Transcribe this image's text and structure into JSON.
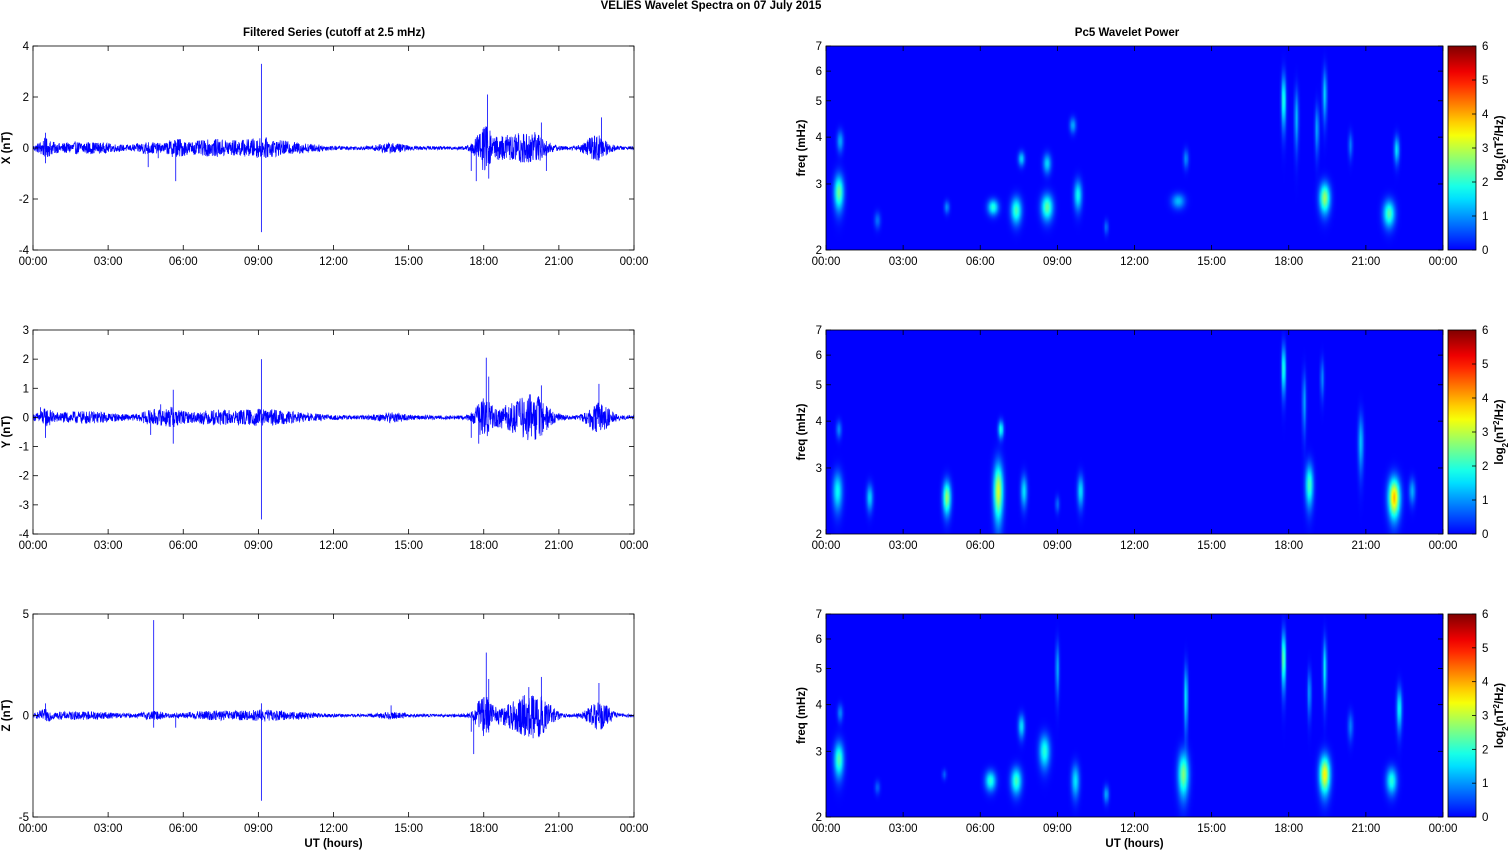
{
  "figure": {
    "suptitle": "VELIES Wavelet Spectra on 07 July      2015",
    "left_title": "Filtered Series (cutoff at 2.5 mHz)",
    "right_title": "Pc5 Wavelet Power"
  },
  "chart_data": [
    {
      "type": "line",
      "title": "Filtered Series (cutoff at 2.5 mHz)",
      "xlabel": "",
      "ylabel": "X (nT)",
      "xlim": [
        0,
        24
      ],
      "ylim": [
        -4,
        4
      ],
      "yticks": [
        "-4",
        "-2",
        "0",
        "2",
        "4"
      ],
      "xticks": [
        "00:00",
        "03:00",
        "06:00",
        "09:00",
        "12:00",
        "15:00",
        "18:00",
        "21:00",
        "00:00"
      ],
      "grid": false,
      "color": "#0000ff",
      "bursts": [
        {
          "t": 0.5,
          "a": 0.25,
          "w": 0.3
        },
        {
          "t": 2.0,
          "a": 0.18,
          "w": 1.5
        },
        {
          "t": 4.6,
          "a": 0.18,
          "w": 0.5
        },
        {
          "t": 5.7,
          "a": 0.25,
          "w": 0.4
        },
        {
          "t": 7.3,
          "a": 0.28,
          "w": 1.4
        },
        {
          "t": 9.1,
          "a": 0.22,
          "w": 0.8
        },
        {
          "t": 10.3,
          "a": 0.16,
          "w": 1.2
        },
        {
          "t": 14.3,
          "a": 0.15,
          "w": 0.6
        },
        {
          "t": 18.0,
          "a": 0.7,
          "w": 0.35
        },
        {
          "t": 19.0,
          "a": 0.45,
          "w": 0.9
        },
        {
          "t": 20.0,
          "a": 0.45,
          "w": 0.6
        },
        {
          "t": 22.5,
          "a": 0.45,
          "w": 0.5
        }
      ],
      "spikes": [
        {
          "t": 0.5,
          "v": 0.6
        },
        {
          "t": 0.5,
          "v": -0.6
        },
        {
          "t": 4.6,
          "v": -0.75
        },
        {
          "t": 5.0,
          "v": -0.4
        },
        {
          "t": 5.7,
          "v": -1.3
        },
        {
          "t": 9.12,
          "v": 3.3
        },
        {
          "t": 9.12,
          "v": -3.3
        },
        {
          "t": 17.5,
          "v": -0.9
        },
        {
          "t": 17.7,
          "v": -1.3
        },
        {
          "t": 18.15,
          "v": 2.1
        },
        {
          "t": 18.2,
          "v": -1.2
        },
        {
          "t": 20.5,
          "v": -0.9
        },
        {
          "t": 22.7,
          "v": 1.2
        },
        {
          "t": 20.3,
          "v": 1.0
        }
      ]
    },
    {
      "type": "line",
      "xlabel": "",
      "ylabel": "Y (nT)",
      "xlim": [
        0,
        24
      ],
      "ylim": [
        -4,
        3
      ],
      "yticks": [
        "-4",
        "-3",
        "-2",
        "-1",
        "0",
        "1",
        "2",
        "3"
      ],
      "xticks": [
        "00:00",
        "03:00",
        "06:00",
        "09:00",
        "12:00",
        "15:00",
        "18:00",
        "21:00",
        "00:00"
      ],
      "grid": false,
      "color": "#0000ff",
      "bursts": [
        {
          "t": 0.5,
          "a": 0.2,
          "w": 0.3
        },
        {
          "t": 2.0,
          "a": 0.15,
          "w": 1.5
        },
        {
          "t": 4.8,
          "a": 0.2,
          "w": 0.5
        },
        {
          "t": 5.6,
          "a": 0.25,
          "w": 0.4
        },
        {
          "t": 7.4,
          "a": 0.2,
          "w": 1.4
        },
        {
          "t": 9.1,
          "a": 0.15,
          "w": 0.8
        },
        {
          "t": 10.3,
          "a": 0.12,
          "w": 1.2
        },
        {
          "t": 14.3,
          "a": 0.12,
          "w": 0.6
        },
        {
          "t": 18.0,
          "a": 0.6,
          "w": 0.35
        },
        {
          "t": 19.3,
          "a": 0.45,
          "w": 0.9
        },
        {
          "t": 20.1,
          "a": 0.5,
          "w": 0.6
        },
        {
          "t": 22.6,
          "a": 0.45,
          "w": 0.5
        }
      ],
      "spikes": [
        {
          "t": 0.5,
          "v": -0.7
        },
        {
          "t": 0.3,
          "v": 0.35
        },
        {
          "t": 4.7,
          "v": -0.6
        },
        {
          "t": 5.1,
          "v": 0.45
        },
        {
          "t": 5.6,
          "v": 0.95
        },
        {
          "t": 5.6,
          "v": -0.9
        },
        {
          "t": 9.12,
          "v": 2.0
        },
        {
          "t": 9.12,
          "v": -3.5
        },
        {
          "t": 17.5,
          "v": -0.7
        },
        {
          "t": 17.8,
          "v": -0.9
        },
        {
          "t": 18.1,
          "v": 2.05
        },
        {
          "t": 18.2,
          "v": 1.4
        },
        {
          "t": 20.3,
          "v": 1.1
        },
        {
          "t": 22.6,
          "v": 1.15
        },
        {
          "t": 22.5,
          "v": -0.5
        }
      ]
    },
    {
      "type": "line",
      "xlabel": "UT (hours)",
      "ylabel": "Z (nT)",
      "xlim": [
        0,
        24
      ],
      "ylim": [
        -5,
        5
      ],
      "yticks": [
        "-5",
        "0",
        "5"
      ],
      "xticks": [
        "00:00",
        "03:00",
        "06:00",
        "09:00",
        "12:00",
        "15:00",
        "18:00",
        "21:00",
        "00:00"
      ],
      "grid": false,
      "color": "#0000ff",
      "bursts": [
        {
          "t": 0.5,
          "a": 0.2,
          "w": 0.3
        },
        {
          "t": 2.0,
          "a": 0.15,
          "w": 1.5
        },
        {
          "t": 4.8,
          "a": 0.15,
          "w": 0.5
        },
        {
          "t": 7.3,
          "a": 0.18,
          "w": 1.4
        },
        {
          "t": 9.1,
          "a": 0.15,
          "w": 0.8
        },
        {
          "t": 10.3,
          "a": 0.12,
          "w": 1.2
        },
        {
          "t": 14.3,
          "a": 0.12,
          "w": 0.6
        },
        {
          "t": 18.0,
          "a": 0.9,
          "w": 0.35
        },
        {
          "t": 19.4,
          "a": 0.7,
          "w": 0.9
        },
        {
          "t": 20.2,
          "a": 0.7,
          "w": 0.6
        },
        {
          "t": 22.6,
          "a": 0.65,
          "w": 0.5
        }
      ],
      "spikes": [
        {
          "t": 0.5,
          "v": 0.6
        },
        {
          "t": 4.82,
          "v": 4.7
        },
        {
          "t": 4.82,
          "v": -0.6
        },
        {
          "t": 5.7,
          "v": -0.6
        },
        {
          "t": 9.12,
          "v": -4.2
        },
        {
          "t": 9.12,
          "v": 0.6
        },
        {
          "t": 14.3,
          "v": 0.5
        },
        {
          "t": 17.6,
          "v": -1.9
        },
        {
          "t": 17.5,
          "v": -0.8
        },
        {
          "t": 18.1,
          "v": 3.1
        },
        {
          "t": 18.2,
          "v": 1.8
        },
        {
          "t": 19.8,
          "v": 1.4
        },
        {
          "t": 20.3,
          "v": 1.9
        },
        {
          "t": 22.6,
          "v": 1.6
        }
      ]
    },
    {
      "type": "heatmap",
      "title": "Pc5 Wavelet Power",
      "xlabel": "",
      "ylabel": "freq (mHz)",
      "xlim": [
        0,
        24
      ],
      "ylim": [
        2,
        7
      ],
      "yscale": "log",
      "yticks": [
        "2",
        "3",
        "4",
        "5",
        "6",
        "7"
      ],
      "xticks": [
        "00:00",
        "03:00",
        "06:00",
        "09:00",
        "12:00",
        "15:00",
        "18:00",
        "21:00",
        "00:00"
      ],
      "colorbar_label": "log2(nT^2/Hz)",
      "colorbar_ticks": [
        "0",
        "1",
        "2",
        "3",
        "4",
        "5",
        "6"
      ],
      "clim": [
        0,
        6
      ],
      "colormap": "jet",
      "blobs": [
        {
          "t": 0.5,
          "f": 2.85,
          "wt": 0.18,
          "wf": 0.3,
          "v": 2.5
        },
        {
          "t": 0.55,
          "f": 3.9,
          "wt": 0.12,
          "wf": 0.25,
          "v": 1.2
        },
        {
          "t": 2.0,
          "f": 2.4,
          "wt": 0.12,
          "wf": 0.12,
          "v": 0.8
        },
        {
          "t": 4.7,
          "f": 2.6,
          "wt": 0.1,
          "wf": 0.1,
          "v": 1.0
        },
        {
          "t": 6.5,
          "f": 2.6,
          "wt": 0.2,
          "wf": 0.12,
          "v": 2.0
        },
        {
          "t": 7.4,
          "f": 2.55,
          "wt": 0.2,
          "wf": 0.2,
          "v": 2.2
        },
        {
          "t": 7.6,
          "f": 3.5,
          "wt": 0.12,
          "wf": 0.15,
          "v": 1.5
        },
        {
          "t": 8.6,
          "f": 2.6,
          "wt": 0.22,
          "wf": 0.2,
          "v": 2.4
        },
        {
          "t": 8.6,
          "f": 3.4,
          "wt": 0.15,
          "wf": 0.2,
          "v": 1.5
        },
        {
          "t": 9.8,
          "f": 2.8,
          "wt": 0.15,
          "wf": 0.25,
          "v": 1.8
        },
        {
          "t": 9.6,
          "f": 4.3,
          "wt": 0.12,
          "wf": 0.2,
          "v": 1.2
        },
        {
          "t": 10.9,
          "f": 2.3,
          "wt": 0.08,
          "wf": 0.1,
          "v": 0.8
        },
        {
          "t": 13.7,
          "f": 2.7,
          "wt": 0.25,
          "wf": 0.12,
          "v": 1.3
        },
        {
          "t": 14.0,
          "f": 3.5,
          "wt": 0.1,
          "wf": 0.2,
          "v": 1.0
        },
        {
          "t": 17.8,
          "f": 5.0,
          "wt": 0.08,
          "wf": 0.8,
          "v": 2.2
        },
        {
          "t": 18.3,
          "f": 4.5,
          "wt": 0.08,
          "wf": 0.8,
          "v": 1.3
        },
        {
          "t": 19.1,
          "f": 4.2,
          "wt": 0.08,
          "wf": 0.6,
          "v": 1.2
        },
        {
          "t": 19.4,
          "f": 2.75,
          "wt": 0.2,
          "wf": 0.25,
          "v": 2.8
        },
        {
          "t": 19.4,
          "f": 5.2,
          "wt": 0.08,
          "wf": 0.8,
          "v": 1.5
        },
        {
          "t": 20.4,
          "f": 3.8,
          "wt": 0.08,
          "wf": 0.3,
          "v": 0.9
        },
        {
          "t": 21.9,
          "f": 2.5,
          "wt": 0.22,
          "wf": 0.2,
          "v": 2.3
        },
        {
          "t": 22.2,
          "f": 3.7,
          "wt": 0.1,
          "wf": 0.3,
          "v": 1.6
        }
      ]
    },
    {
      "type": "heatmap",
      "xlabel": "",
      "ylabel": "freq (mHz)",
      "xlim": [
        0,
        24
      ],
      "ylim": [
        2,
        7
      ],
      "yscale": "log",
      "yticks": [
        "2",
        "3",
        "4",
        "5",
        "6",
        "7"
      ],
      "xticks": [
        "00:00",
        "03:00",
        "06:00",
        "09:00",
        "12:00",
        "15:00",
        "18:00",
        "21:00",
        "00:00"
      ],
      "colorbar_label": "log2(nT^2/Hz)",
      "colorbar_ticks": [
        "0",
        "1",
        "2",
        "3",
        "4",
        "5",
        "6"
      ],
      "clim": [
        0,
        6
      ],
      "colormap": "jet",
      "blobs": [
        {
          "t": 0.45,
          "f": 2.6,
          "wt": 0.18,
          "wf": 0.3,
          "v": 1.8
        },
        {
          "t": 0.5,
          "f": 3.8,
          "wt": 0.1,
          "wf": 0.2,
          "v": 1.0
        },
        {
          "t": 1.7,
          "f": 2.5,
          "wt": 0.12,
          "wf": 0.2,
          "v": 1.5
        },
        {
          "t": 4.7,
          "f": 2.5,
          "wt": 0.15,
          "wf": 0.25,
          "v": 2.8
        },
        {
          "t": 6.7,
          "f": 2.6,
          "wt": 0.18,
          "wf": 0.45,
          "v": 3.2
        },
        {
          "t": 6.8,
          "f": 3.8,
          "wt": 0.1,
          "wf": 0.2,
          "v": 2.0
        },
        {
          "t": 7.7,
          "f": 2.6,
          "wt": 0.12,
          "wf": 0.25,
          "v": 1.6
        },
        {
          "t": 9.0,
          "f": 2.4,
          "wt": 0.08,
          "wf": 0.12,
          "v": 0.8
        },
        {
          "t": 9.9,
          "f": 2.6,
          "wt": 0.12,
          "wf": 0.25,
          "v": 1.6
        },
        {
          "t": 17.8,
          "f": 5.5,
          "wt": 0.07,
          "wf": 0.8,
          "v": 2.3
        },
        {
          "t": 18.8,
          "f": 2.7,
          "wt": 0.15,
          "wf": 0.35,
          "v": 2.2
        },
        {
          "t": 18.6,
          "f": 4.5,
          "wt": 0.07,
          "wf": 0.8,
          "v": 1.2
        },
        {
          "t": 19.3,
          "f": 5.2,
          "wt": 0.07,
          "wf": 0.6,
          "v": 1.0
        },
        {
          "t": 20.8,
          "f": 3.5,
          "wt": 0.1,
          "wf": 0.6,
          "v": 1.4
        },
        {
          "t": 22.1,
          "f": 2.5,
          "wt": 0.22,
          "wf": 0.3,
          "v": 3.9
        },
        {
          "t": 22.8,
          "f": 2.6,
          "wt": 0.12,
          "wf": 0.2,
          "v": 1.2
        }
      ]
    },
    {
      "type": "heatmap",
      "xlabel": "UT (hours)",
      "ylabel": "freq (mHz)",
      "xlim": [
        0,
        24
      ],
      "ylim": [
        2,
        7
      ],
      "yscale": "log",
      "yticks": [
        "2",
        "3",
        "4",
        "5",
        "6",
        "7"
      ],
      "xticks": [
        "00:00",
        "03:00",
        "06:00",
        "09:00",
        "12:00",
        "15:00",
        "18:00",
        "21:00",
        "00:00"
      ],
      "colorbar_label": "log2(nT^2/Hz)",
      "colorbar_ticks": [
        "0",
        "1",
        "2",
        "3",
        "4",
        "5",
        "6"
      ],
      "clim": [
        0,
        6
      ],
      "colormap": "jet",
      "blobs": [
        {
          "t": 0.5,
          "f": 2.85,
          "wt": 0.18,
          "wf": 0.3,
          "v": 2.3
        },
        {
          "t": 0.55,
          "f": 3.8,
          "wt": 0.1,
          "wf": 0.2,
          "v": 1.0
        },
        {
          "t": 2.0,
          "f": 2.4,
          "wt": 0.1,
          "wf": 0.1,
          "v": 0.7
        },
        {
          "t": 4.6,
          "f": 2.6,
          "wt": 0.08,
          "wf": 0.08,
          "v": 0.7
        },
        {
          "t": 6.4,
          "f": 2.5,
          "wt": 0.2,
          "wf": 0.15,
          "v": 2.0
        },
        {
          "t": 7.4,
          "f": 2.5,
          "wt": 0.2,
          "wf": 0.2,
          "v": 2.2
        },
        {
          "t": 7.6,
          "f": 3.5,
          "wt": 0.12,
          "wf": 0.25,
          "v": 1.6
        },
        {
          "t": 8.5,
          "f": 3.0,
          "wt": 0.2,
          "wf": 0.3,
          "v": 2.0
        },
        {
          "t": 9.0,
          "f": 5.0,
          "wt": 0.07,
          "wf": 0.8,
          "v": 1.3
        },
        {
          "t": 9.7,
          "f": 2.5,
          "wt": 0.15,
          "wf": 0.25,
          "v": 1.6
        },
        {
          "t": 10.9,
          "f": 2.3,
          "wt": 0.1,
          "wf": 0.12,
          "v": 1.2
        },
        {
          "t": 13.9,
          "f": 2.6,
          "wt": 0.2,
          "wf": 0.35,
          "v": 2.6
        },
        {
          "t": 14.0,
          "f": 4.2,
          "wt": 0.07,
          "wf": 0.8,
          "v": 1.8
        },
        {
          "t": 17.8,
          "f": 5.3,
          "wt": 0.07,
          "wf": 0.9,
          "v": 2.8
        },
        {
          "t": 18.8,
          "f": 4.3,
          "wt": 0.07,
          "wf": 0.6,
          "v": 1.2
        },
        {
          "t": 19.4,
          "f": 2.6,
          "wt": 0.2,
          "wf": 0.3,
          "v": 3.5
        },
        {
          "t": 19.4,
          "f": 5.0,
          "wt": 0.07,
          "wf": 0.9,
          "v": 1.8
        },
        {
          "t": 20.4,
          "f": 3.5,
          "wt": 0.1,
          "wf": 0.3,
          "v": 0.9
        },
        {
          "t": 22.0,
          "f": 2.5,
          "wt": 0.2,
          "wf": 0.2,
          "v": 2.0
        },
        {
          "t": 22.3,
          "f": 3.9,
          "wt": 0.1,
          "wf": 0.5,
          "v": 1.8
        }
      ]
    }
  ]
}
